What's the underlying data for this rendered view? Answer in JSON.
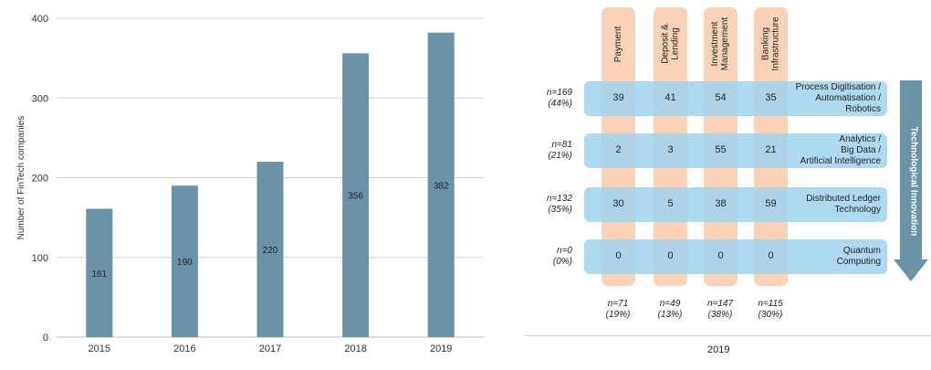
{
  "chart_data": [
    {
      "type": "bar",
      "categories": [
        "2015",
        "2016",
        "2017",
        "2018",
        "2019"
      ],
      "values": [
        161,
        190,
        220,
        356,
        382
      ],
      "data_labels": [
        "161",
        "190",
        "220",
        "356",
        "382"
      ],
      "title": "",
      "xlabel": "",
      "ylabel": "Number of FinTech companies",
      "ylim": [
        0,
        400
      ],
      "yticks": [
        0,
        100,
        200,
        300,
        400
      ],
      "ytick_labels": [
        "0",
        "100",
        "200",
        "300",
        "400"
      ],
      "grid": true,
      "bar_color": "#6b93a6"
    },
    {
      "type": "table",
      "xlabel": "2019",
      "columns": [
        {
          "label": "Payment",
          "n": "n=71",
          "pct": "(19%)"
        },
        {
          "label": "Deposit &\nLending",
          "n": "n=49",
          "pct": "(13%)"
        },
        {
          "label": "Investment\nManagement",
          "n": "n=147",
          "pct": "(38%)"
        },
        {
          "label": "Banking\nInfrastructure",
          "n": "n=115",
          "pct": "(30%)"
        }
      ],
      "rows": [
        {
          "label": "Process Digitisation /\nAutomatisation /\nRobotics",
          "n": "n=169",
          "pct": "(44%)",
          "values": [
            "39",
            "41",
            "54",
            "35"
          ]
        },
        {
          "label": "Analytics /\nBig Data /\nArtificial Intelligence",
          "n": "n=81",
          "pct": "(21%)",
          "values": [
            "2",
            "3",
            "55",
            "21"
          ]
        },
        {
          "label": "Distributed Ledger\nTechnology",
          "n": "n=132",
          "pct": "(35%)",
          "values": [
            "30",
            "5",
            "38",
            "59"
          ]
        },
        {
          "label": "Quantum\nComputing",
          "n": "n=0",
          "pct": "(0%)",
          "values": [
            "0",
            "0",
            "0",
            "0"
          ]
        }
      ],
      "arrow_label": "Technological Innovation",
      "column_color": "#f9d2b8",
      "row_color": "#a0d4ee",
      "arrow_color": "#6b93a6"
    }
  ]
}
